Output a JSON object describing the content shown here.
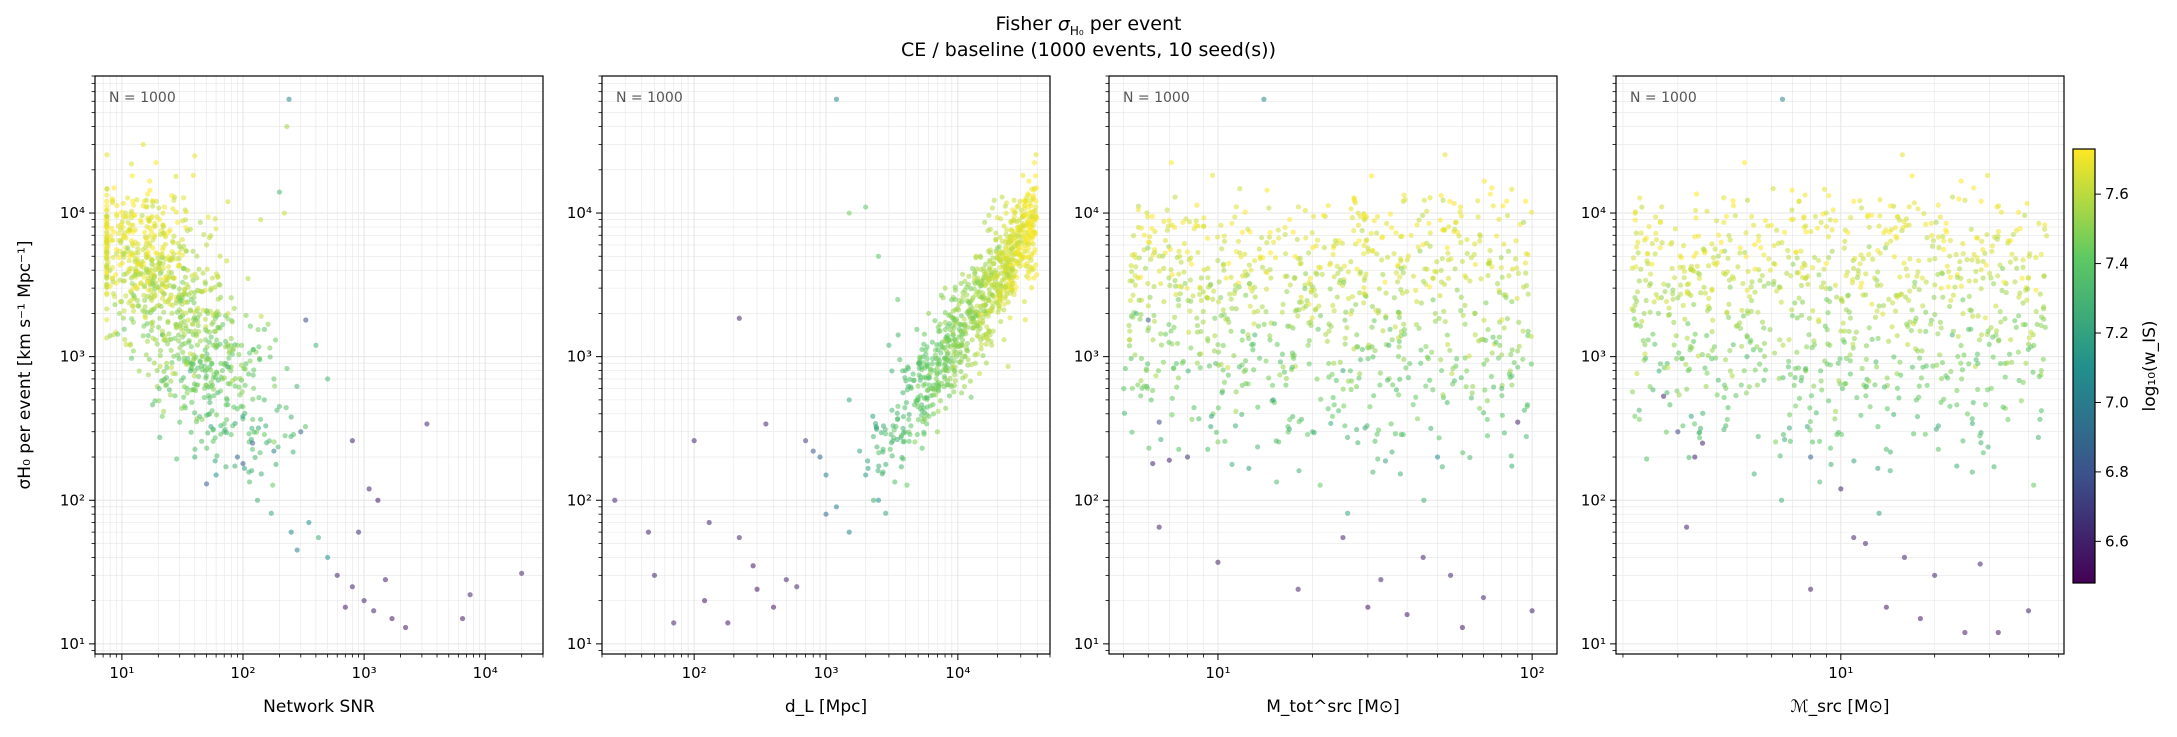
{
  "title": {
    "prefix": "Fisher ",
    "sigma": "σ",
    "sub": "H₀",
    "suffix": " per event",
    "line2": "CE / baseline  (1000 events, 10 seed(s))"
  },
  "colors": {
    "cmap": [
      "#440154",
      "#3b528b",
      "#21918c",
      "#5ec962",
      "#fde725"
    ],
    "grid": "#e6e6e6",
    "annot": "#555555"
  },
  "colorbar": {
    "label": "log₁₀(w_IS)",
    "range": [
      6.48,
      7.73
    ],
    "ticks": [
      "6.6",
      "6.8",
      "7.0",
      "7.2",
      "7.4",
      "7.6"
    ],
    "tick_values": [
      6.6,
      6.8,
      7.0,
      7.2,
      7.4,
      7.6
    ]
  },
  "chart_data": [
    {
      "type": "scatter",
      "name": "panel-snr",
      "xlabel": "Network SNR",
      "ylabel": "σH₀ per event [km s⁻¹ Mpc⁻¹]",
      "xscale": "log",
      "yscale": "log",
      "xlim": [
        6,
        30000
      ],
      "ylim": [
        8.5,
        90000
      ],
      "xticks": [
        10,
        100,
        1000,
        10000
      ],
      "xtick_labels": [
        "10¹",
        "10²",
        "10³",
        "10⁴"
      ],
      "yticks": [
        10,
        100,
        1000,
        10000
      ],
      "ytick_labels": [
        "10¹",
        "10²",
        "10³",
        "10⁴"
      ],
      "annotation": "N = 1000",
      "n_events": 1000,
      "param": "snr",
      "points": [
        [
          9,
          5200,
          7.62
        ],
        [
          12,
          22000,
          7.66
        ],
        [
          15,
          30000,
          7.68
        ],
        [
          18,
          12000,
          7.64
        ],
        [
          22,
          8000,
          7.62
        ],
        [
          28,
          18000,
          7.66
        ],
        [
          35,
          4000,
          7.58
        ],
        [
          40,
          25000,
          7.68
        ],
        [
          50,
          6000,
          7.6
        ],
        [
          60,
          2000,
          7.52
        ],
        [
          75,
          12000,
          7.64
        ],
        [
          90,
          1200,
          7.48
        ],
        [
          110,
          3500,
          7.58
        ],
        [
          140,
          9000,
          7.62
        ],
        [
          180,
          700,
          7.42
        ],
        [
          220,
          10000,
          7.62
        ],
        [
          240,
          62000,
          7.05
        ],
        [
          230,
          40000,
          7.55
        ],
        [
          200,
          14000,
          7.3
        ],
        [
          330,
          1800,
          6.75
        ],
        [
          400,
          1200,
          7.3
        ],
        [
          500,
          700,
          7.3
        ],
        [
          150,
          500,
          7.35
        ],
        [
          200,
          450,
          7.32
        ],
        [
          250,
          380,
          7.28
        ],
        [
          300,
          300,
          6.9
        ],
        [
          180,
          220,
          7.0
        ],
        [
          120,
          250,
          6.85
        ],
        [
          100,
          180,
          6.8
        ],
        [
          90,
          200,
          6.9
        ],
        [
          70,
          300,
          7.3
        ],
        [
          60,
          150,
          7.1
        ],
        [
          50,
          130,
          6.85
        ],
        [
          40,
          200,
          7.25
        ],
        [
          30,
          350,
          7.4
        ],
        [
          250,
          60,
          7.05
        ],
        [
          280,
          45,
          7.0
        ],
        [
          350,
          70,
          7.1
        ],
        [
          420,
          55,
          7.25
        ],
        [
          500,
          40,
          7.1
        ],
        [
          600,
          30,
          6.6
        ],
        [
          700,
          18,
          6.55
        ],
        [
          800,
          25,
          6.6
        ],
        [
          900,
          60,
          6.65
        ],
        [
          1000,
          20,
          6.6
        ],
        [
          1100,
          120,
          6.6
        ],
        [
          1300,
          100,
          6.55
        ],
        [
          1500,
          28,
          6.58
        ],
        [
          1700,
          15,
          6.55
        ],
        [
          2200,
          13,
          6.55
        ],
        [
          3300,
          340,
          6.6
        ],
        [
          6500,
          15,
          6.55
        ],
        [
          7500,
          22,
          6.6
        ],
        [
          20000,
          31,
          6.6
        ],
        [
          800,
          260,
          6.6
        ],
        [
          1200,
          17,
          6.6
        ]
      ]
    },
    {
      "type": "scatter",
      "name": "panel-dl",
      "xlabel": "d_L [Mpc]",
      "ylabel": "",
      "xscale": "log",
      "yscale": "log",
      "xlim": [
        20,
        50000
      ],
      "ylim": [
        8.5,
        90000
      ],
      "xticks": [
        100,
        1000,
        10000
      ],
      "xtick_labels": [
        "10²",
        "10³",
        "10⁴"
      ],
      "yticks": [
        10,
        100,
        1000,
        10000
      ],
      "ytick_labels": [
        "10¹",
        "10²",
        "10³",
        "10⁴"
      ],
      "annotation": "N = 1000",
      "n_events": 1000,
      "param": "dl",
      "points": [
        [
          25,
          100,
          6.6
        ],
        [
          45,
          60,
          6.6
        ],
        [
          50,
          30,
          6.6
        ],
        [
          70,
          14,
          6.6
        ],
        [
          100,
          260,
          6.6
        ],
        [
          120,
          20,
          6.55
        ],
        [
          130,
          70,
          6.6
        ],
        [
          180,
          14,
          6.55
        ],
        [
          220,
          1850,
          6.6
        ],
        [
          220,
          55,
          6.6
        ],
        [
          280,
          35,
          6.55
        ],
        [
          300,
          24,
          6.55
        ],
        [
          350,
          340,
          6.6
        ],
        [
          400,
          18,
          6.55
        ],
        [
          500,
          28,
          6.6
        ],
        [
          600,
          25,
          6.6
        ],
        [
          700,
          260,
          6.7
        ],
        [
          800,
          220,
          6.8
        ],
        [
          1000,
          80,
          6.9
        ],
        [
          1200,
          62000,
          7.05
        ],
        [
          1500,
          10000,
          7.45
        ],
        [
          2000,
          11000,
          7.4
        ],
        [
          2500,
          5000,
          7.4
        ],
        [
          3000,
          1200,
          7.3
        ],
        [
          3500,
          2500,
          7.4
        ],
        [
          4000,
          800,
          7.3
        ],
        [
          5000,
          500,
          7.4
        ],
        [
          6000,
          2000,
          7.5
        ],
        [
          7000,
          300,
          7.5
        ],
        [
          8000,
          3000,
          7.55
        ],
        [
          1500,
          500,
          7.25
        ],
        [
          1800,
          220,
          7.2
        ],
        [
          2000,
          150,
          7.15
        ],
        [
          2500,
          100,
          7.1
        ],
        [
          1500,
          60,
          7.05
        ],
        [
          1200,
          90,
          7.0
        ],
        [
          1000,
          150,
          7.0
        ],
        [
          900,
          200,
          6.9
        ]
      ]
    },
    {
      "type": "scatter",
      "name": "panel-mtot",
      "xlabel": "M_tot^src [M⊙]",
      "ylabel": "",
      "xscale": "log",
      "yscale": "log",
      "xlim": [
        4.5,
        120
      ],
      "ylim": [
        8.5,
        90000
      ],
      "xticks": [
        10,
        100
      ],
      "xtick_labels": [
        "10¹",
        "10²"
      ],
      "yticks": [
        10,
        100,
        1000,
        10000
      ],
      "ytick_labels": [
        "10¹",
        "10²",
        "10³",
        "10⁴"
      ],
      "annotation": "N = 1000",
      "n_events": 1000,
      "param": "mtot",
      "points": [
        [
          5.5,
          2000,
          7.3
        ],
        [
          6,
          1800,
          6.8
        ],
        [
          6.5,
          350,
          6.75
        ],
        [
          7,
          190,
          6.6
        ],
        [
          6.5,
          65,
          6.6
        ],
        [
          6.2,
          180,
          6.6
        ],
        [
          8,
          200,
          6.65
        ],
        [
          10,
          37,
          6.6
        ],
        [
          14,
          62000,
          7.05
        ],
        [
          18,
          24,
          6.6
        ],
        [
          25,
          55,
          6.6
        ],
        [
          30,
          18,
          6.55
        ],
        [
          33,
          28,
          6.6
        ],
        [
          40,
          16,
          6.55
        ],
        [
          45,
          40,
          6.6
        ],
        [
          55,
          30,
          6.6
        ],
        [
          60,
          13,
          6.55
        ],
        [
          70,
          21,
          6.6
        ],
        [
          90,
          350,
          6.6
        ],
        [
          100,
          17,
          6.6
        ],
        [
          15,
          500,
          7.2
        ],
        [
          20,
          300,
          7.3
        ],
        [
          35,
          1200,
          7.3
        ],
        [
          50,
          200,
          7.1
        ],
        [
          80,
          600,
          7.35
        ],
        [
          12,
          1500,
          7.4
        ],
        [
          25,
          800,
          7.2
        ]
      ]
    },
    {
      "type": "scatter",
      "name": "panel-mchirp",
      "xlabel": "ℳ_src [M⊙]",
      "ylabel": "",
      "xscale": "log",
      "yscale": "log",
      "xlim": [
        1.9,
        52
      ],
      "ylim": [
        8.5,
        90000
      ],
      "xticks": [
        10
      ],
      "xtick_labels": [
        "10¹"
      ],
      "yticks": [
        10,
        100,
        1000,
        10000
      ],
      "ytick_labels": [
        "10¹",
        "10²",
        "10³",
        "10⁴"
      ],
      "annotation": "N = 1000",
      "n_events": 1000,
      "param": "mc",
      "points": [
        [
          2.7,
          530,
          6.6
        ],
        [
          3,
          300,
          6.75
        ],
        [
          3.2,
          65,
          6.6
        ],
        [
          3.4,
          200,
          6.6
        ],
        [
          3.6,
          250,
          6.6
        ],
        [
          6.5,
          62000,
          7.05
        ],
        [
          8,
          24,
          6.6
        ],
        [
          10,
          120,
          6.6
        ],
        [
          11,
          55,
          6.6
        ],
        [
          12,
          50,
          6.6
        ],
        [
          14,
          18,
          6.55
        ],
        [
          16,
          40,
          6.6
        ],
        [
          18,
          15,
          6.55
        ],
        [
          20,
          30,
          6.6
        ],
        [
          25,
          12,
          6.55
        ],
        [
          28,
          36,
          6.6
        ],
        [
          32,
          12,
          6.55
        ],
        [
          40,
          17,
          6.6
        ],
        [
          2.3,
          11000,
          7.6
        ],
        [
          5,
          1000,
          7.3
        ],
        [
          8,
          200,
          6.85
        ]
      ]
    }
  ]
}
